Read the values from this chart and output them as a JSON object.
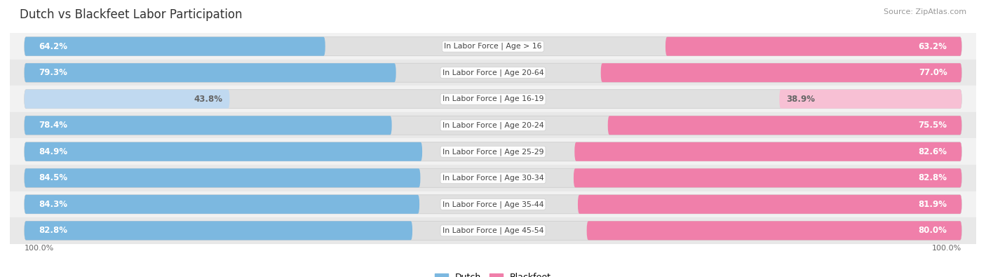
{
  "title": "Dutch vs Blackfeet Labor Participation",
  "source": "Source: ZipAtlas.com",
  "categories": [
    "In Labor Force | Age > 16",
    "In Labor Force | Age 20-64",
    "In Labor Force | Age 16-19",
    "In Labor Force | Age 20-24",
    "In Labor Force | Age 25-29",
    "In Labor Force | Age 30-34",
    "In Labor Force | Age 35-44",
    "In Labor Force | Age 45-54"
  ],
  "dutch_values": [
    64.2,
    79.3,
    43.8,
    78.4,
    84.9,
    84.5,
    84.3,
    82.8
  ],
  "blackfeet_values": [
    63.2,
    77.0,
    38.9,
    75.5,
    82.6,
    82.8,
    81.9,
    80.0
  ],
  "dutch_color": "#7cb8e0",
  "dutch_color_light": "#c0d9f0",
  "blackfeet_color": "#f07faa",
  "blackfeet_color_light": "#f7c0d4",
  "pill_bg_color": "#e8e8e8",
  "row_bg_even": "#f2f2f2",
  "row_bg_odd": "#e8e8e8",
  "label_color_white": "#ffffff",
  "label_color_dark": "#666666",
  "max_value": 100.0,
  "bar_height": 0.72,
  "title_fontsize": 12,
  "label_fontsize": 8.5,
  "cat_fontsize": 7.8,
  "source_fontsize": 8,
  "legend_fontsize": 9,
  "axis_label_left": "100.0%",
  "axis_label_right": "100.0%"
}
